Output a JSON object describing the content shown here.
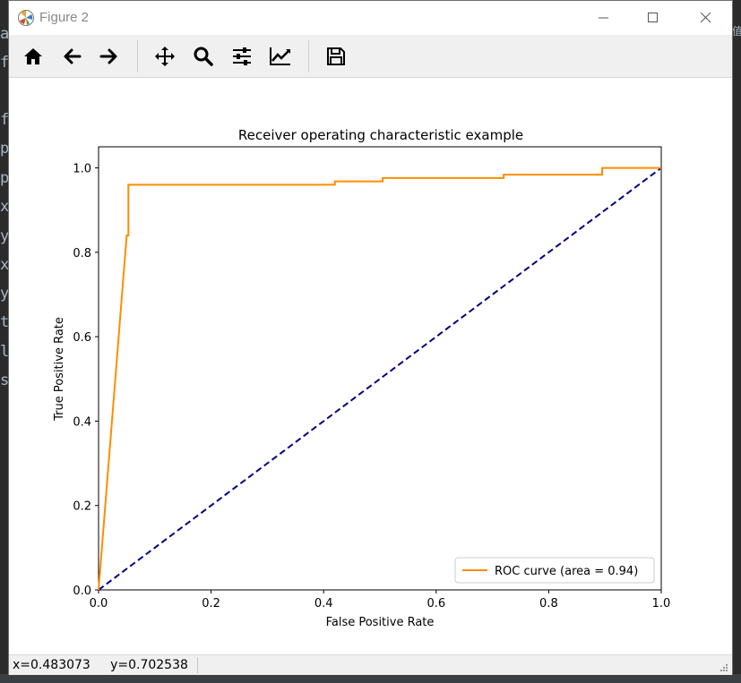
{
  "window": {
    "title": "Figure 2"
  },
  "toolbar": {
    "buttons": [
      {
        "name": "home-icon"
      },
      {
        "name": "back-arrow-icon"
      },
      {
        "name": "forward-arrow-icon"
      },
      {
        "name": "pan-icon"
      },
      {
        "name": "zoom-icon"
      },
      {
        "name": "configure-subplots-icon"
      },
      {
        "name": "edit-axis-icon"
      },
      {
        "name": "save-icon"
      }
    ]
  },
  "status": {
    "coords": "x=0.483073     y=0.702538"
  },
  "background": {
    "left_chars": [
      "a",
      "f",
      "f",
      "p",
      "p",
      "x",
      "y",
      "x",
      "y",
      "t",
      "l",
      "s"
    ],
    "right_chars": [
      "值"
    ]
  },
  "chart_data": {
    "type": "line",
    "title": "Receiver operating characteristic example",
    "xlabel": "False Positive Rate",
    "ylabel": "True Positive Rate",
    "xlim": [
      0.0,
      1.0
    ],
    "ylim": [
      0.0,
      1.05
    ],
    "xticks": [
      "0.0",
      "0.2",
      "0.4",
      "0.6",
      "0.8",
      "1.0"
    ],
    "yticks": [
      "0.0",
      "0.2",
      "0.4",
      "0.6",
      "0.8",
      "1.0"
    ],
    "legend_position": "lower right",
    "series": [
      {
        "name": "ROC curve (area = 0.94)",
        "color": "#ff8c00",
        "style": "solid",
        "x": [
          0.0,
          0.05,
          0.053,
          0.053,
          0.42,
          0.42,
          0.505,
          0.505,
          0.72,
          0.72,
          0.895,
          0.895,
          1.0
        ],
        "y": [
          0.0,
          0.84,
          0.84,
          0.96,
          0.96,
          0.968,
          0.968,
          0.976,
          0.976,
          0.984,
          0.984,
          1.0,
          1.0
        ]
      },
      {
        "name": "",
        "color": "#000080",
        "style": "dashed",
        "x": [
          0.0,
          1.0
        ],
        "y": [
          0.0,
          1.0
        ]
      }
    ]
  }
}
